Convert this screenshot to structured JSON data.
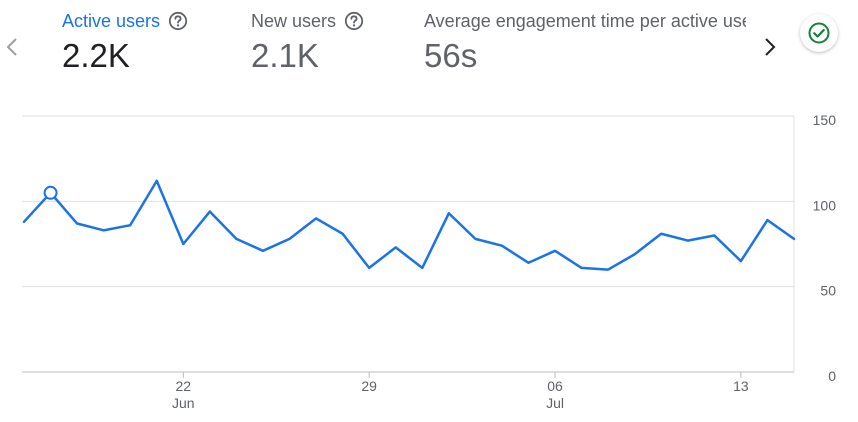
{
  "metrics": [
    {
      "label": "Active users",
      "value": "2.2K",
      "selected": true
    },
    {
      "label": "New users",
      "value": "2.1K",
      "selected": false
    },
    {
      "label": "Average engagement time per active user",
      "value": "56s",
      "selected": false
    }
  ],
  "icons": {
    "prev": "chevron-left-icon",
    "next": "chevron-right-icon",
    "help": "help-circle-icon",
    "status": "check-circle-icon"
  },
  "colors": {
    "accent": "#1a73e8",
    "line": "#1a73e8",
    "status": "#188038",
    "grid": "#e0e0e0",
    "axis": "#bdbdbd"
  },
  "chart_data": {
    "type": "line",
    "series": [
      {
        "values": [
          88,
          105,
          87,
          83,
          86,
          112,
          75,
          94,
          78,
          71,
          78,
          90,
          81,
          61,
          73,
          61,
          93,
          78,
          74,
          64,
          71,
          61,
          60,
          69,
          81,
          77,
          80,
          65,
          89,
          78
        ]
      }
    ],
    "highlight_index": 1,
    "y_ticks": [
      "150",
      "100",
      "50",
      "0"
    ],
    "y_tick_values": [
      150,
      100,
      50,
      0
    ],
    "ylim": [
      0,
      150
    ],
    "x_ticks": [
      {
        "index": 6,
        "label": "22",
        "sublabel": "Jun"
      },
      {
        "index": 13,
        "label": "29",
        "sublabel": ""
      },
      {
        "index": 20,
        "label": "06",
        "sublabel": "Jul"
      },
      {
        "index": 27,
        "label": "13",
        "sublabel": ""
      }
    ],
    "grid": true
  }
}
